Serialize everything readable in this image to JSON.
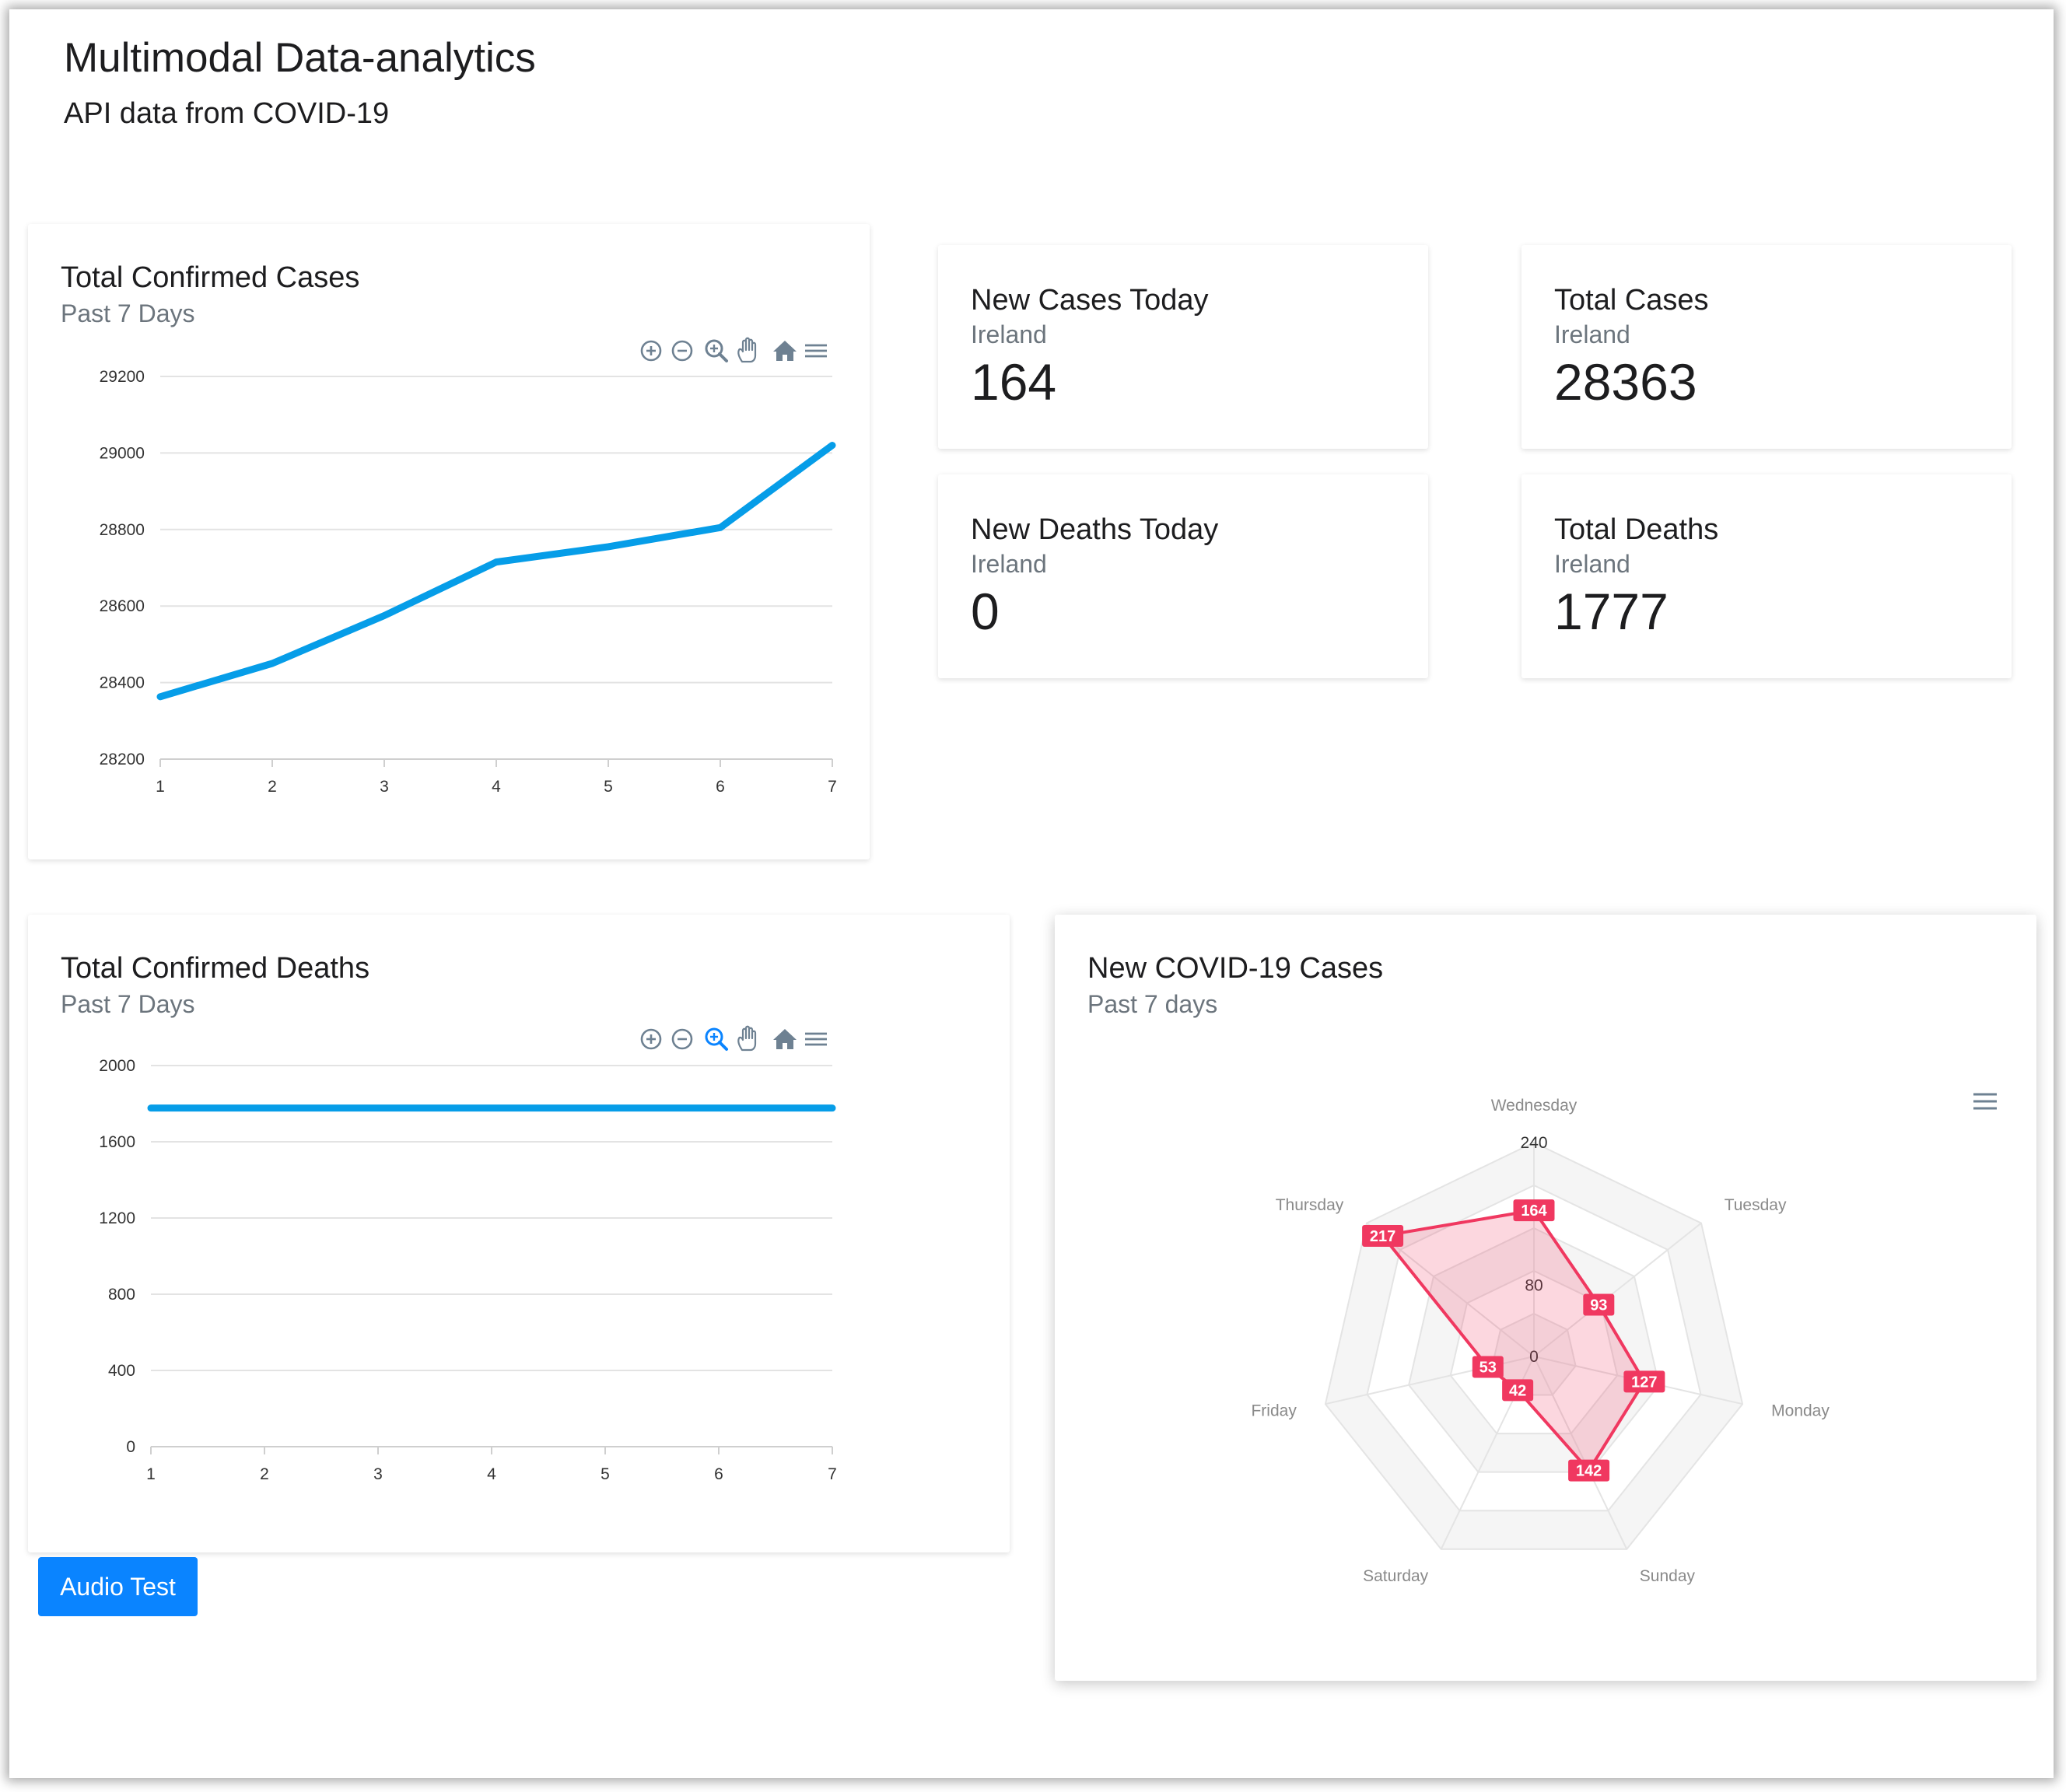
{
  "page": {
    "title": "Multimodal Data-analytics",
    "subtitle": "API data from COVID-19"
  },
  "cards": {
    "confirmed_cases": {
      "title": "Total Confirmed Cases",
      "subtitle": "Past 7 Days"
    },
    "confirmed_deaths": {
      "title": "Total Confirmed Deaths",
      "subtitle": "Past 7 Days"
    },
    "radar": {
      "title": "New COVID-19 Cases",
      "subtitle": "Past 7 days"
    }
  },
  "stats": {
    "new_cases": {
      "title": "New Cases Today",
      "region": "Ireland",
      "value": "164"
    },
    "total_cases": {
      "title": "Total Cases",
      "region": "Ireland",
      "value": "28363"
    },
    "new_deaths": {
      "title": "New Deaths Today",
      "region": "Ireland",
      "value": "0"
    },
    "total_deaths": {
      "title": "Total Deaths",
      "region": "Ireland",
      "value": "1777"
    }
  },
  "toolbar_icons": [
    "zoom-in-icon",
    "zoom-out-icon",
    "selection-zoom-icon",
    "pan-hand-icon",
    "home-reset-icon",
    "menu-icon"
  ],
  "audio_button": {
    "label": "Audio Test"
  },
  "colors": {
    "line": "#069de8",
    "radar": "#f03860",
    "button": "#0a84ff"
  },
  "chart_data": [
    {
      "type": "line",
      "x": [
        1,
        2,
        3,
        4,
        5,
        6,
        7
      ],
      "series": [
        {
          "values": [
            28363,
            28450,
            28575,
            28715,
            28755,
            28805,
            29020
          ]
        }
      ],
      "ylim": [
        28200,
        29200
      ],
      "yticks": [
        29200,
        29000,
        28800,
        28600,
        28400,
        28200
      ],
      "grid": true
    },
    {
      "type": "line",
      "x": [
        1,
        2,
        3,
        4,
        5,
        6,
        7
      ],
      "series": [
        {
          "values": [
            1777,
            1777,
            1777,
            1777,
            1777,
            1777,
            1777
          ]
        }
      ],
      "ylim": [
        0,
        2000
      ],
      "yticks": [
        2000,
        1600,
        1200,
        800,
        400,
        0
      ],
      "grid": true
    },
    {
      "type": "radar",
      "categories": [
        "Wednesday",
        "Tuesday",
        "Monday",
        "Sunday",
        "Saturday",
        "Friday",
        "Thursday"
      ],
      "series": [
        {
          "values": [
            164,
            93,
            127,
            142,
            42,
            53,
            217
          ]
        }
      ],
      "rlim": [
        0,
        240
      ],
      "rticks": [
        "240",
        "160",
        "80",
        "0"
      ]
    }
  ]
}
